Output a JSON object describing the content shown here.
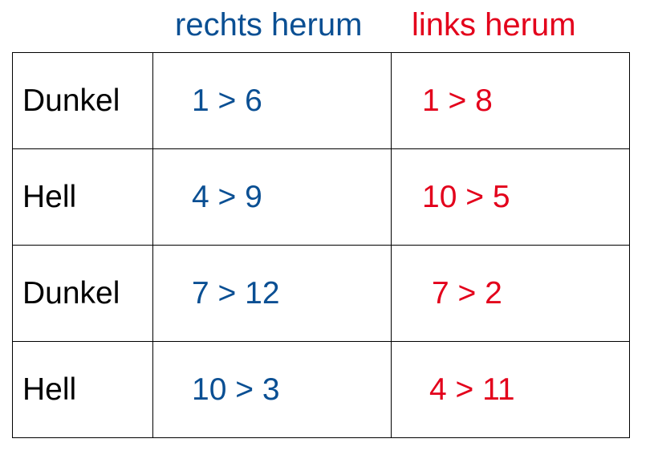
{
  "headers": {
    "right": "rechts herum",
    "left": "links herum"
  },
  "colors": {
    "right": "#0a4f93",
    "left": "#e3001b"
  },
  "rows": [
    {
      "label": "Dunkel",
      "right": "1 > 6",
      "left": "1 > 8"
    },
    {
      "label": "Hell",
      "right": "4 > 9",
      "left": "10 > 5"
    },
    {
      "label": "Dunkel",
      "right": "7 > 12",
      "left": "7 > 2"
    },
    {
      "label": "Hell",
      "right": "10 > 3",
      "left": "4 > 11"
    }
  ]
}
